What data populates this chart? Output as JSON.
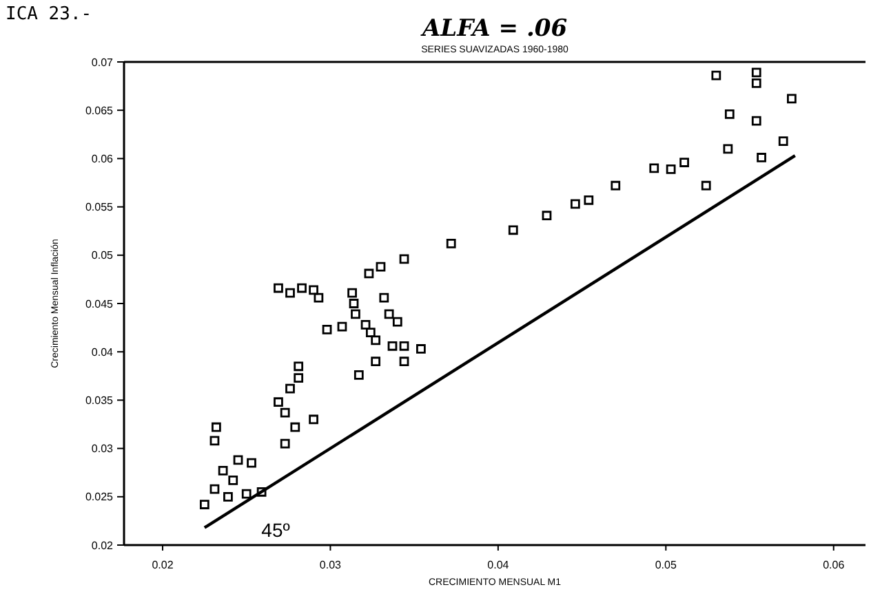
{
  "chart_data": {
    "type": "scatter",
    "title": "ALFA = .06",
    "subtitle": "SERIES SUAVIZADAS 1960-1980",
    "xlabel": "CRECIMIENTO MENSUAL M1",
    "ylabel": "Crecimiento Mensual Inflación",
    "annotations": [
      "ICA 23.-",
      "45º"
    ],
    "xlim": [
      0.0177,
      0.0619
    ],
    "ylim": [
      0.02,
      0.07
    ],
    "xticks": [
      0.02,
      0.03,
      0.04,
      0.05,
      0.06
    ],
    "yticks": [
      0.02,
      0.025,
      0.03,
      0.035,
      0.04,
      0.045,
      0.05,
      0.055,
      0.06,
      0.065,
      0.07
    ],
    "marker": "square",
    "grid": false,
    "series": [
      {
        "color": "#000000",
        "x": [
          0.0269,
          0.0276,
          0.0283,
          0.029,
          0.0293,
          0.0323,
          0.033,
          0.0344,
          0.0313,
          0.0314,
          0.0315,
          0.0332,
          0.0335,
          0.034,
          0.0298,
          0.0307,
          0.0321,
          0.0324,
          0.0327,
          0.0337,
          0.0344,
          0.0354,
          0.0327,
          0.0344,
          0.0317,
          0.0281,
          0.0281,
          0.0276,
          0.0269,
          0.0273,
          0.029,
          0.0279,
          0.0273,
          0.0232,
          0.0231,
          0.0245,
          0.0253,
          0.0236,
          0.0242,
          0.0231,
          0.0225,
          0.0239,
          0.025,
          0.0259,
          0.053,
          0.0554,
          0.0554,
          0.0575,
          0.0538,
          0.0554,
          0.0537,
          0.057,
          0.0557,
          0.0524,
          0.0493,
          0.0503,
          0.0511,
          0.047,
          0.0454,
          0.0446,
          0.0429,
          0.0409,
          0.0372
        ],
        "values": [
          0.0466,
          0.0461,
          0.0466,
          0.0464,
          0.0456,
          0.0481,
          0.0488,
          0.0496,
          0.0461,
          0.045,
          0.0439,
          0.0456,
          0.0439,
          0.0431,
          0.0423,
          0.0426,
          0.0428,
          0.042,
          0.0412,
          0.0406,
          0.0406,
          0.0403,
          0.039,
          0.039,
          0.0376,
          0.0385,
          0.0373,
          0.0362,
          0.0348,
          0.0337,
          0.033,
          0.0322,
          0.0305,
          0.0322,
          0.0308,
          0.0288,
          0.0285,
          0.0277,
          0.0267,
          0.0258,
          0.0242,
          0.025,
          0.0253,
          0.0255,
          0.0686,
          0.0689,
          0.0678,
          0.0662,
          0.0646,
          0.0639,
          0.061,
          0.0618,
          0.0601,
          0.0572,
          0.059,
          0.0589,
          0.0596,
          0.0572,
          0.0557,
          0.0553,
          0.0541,
          0.0526,
          0.0512
        ]
      },
      {
        "type": "line",
        "color": "#000000",
        "marker": "none",
        "x": [
          0.0225,
          0.0577
        ],
        "values": [
          0.0218,
          0.0603
        ]
      }
    ]
  }
}
